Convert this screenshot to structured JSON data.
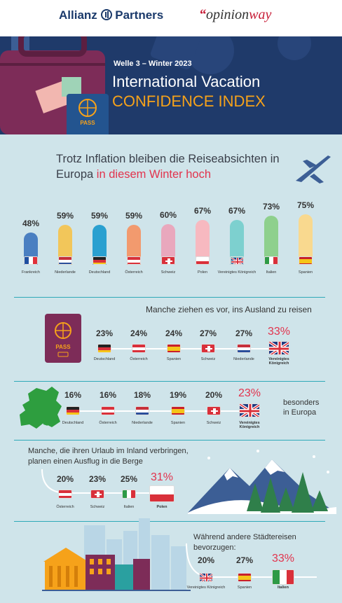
{
  "header": {
    "brand_allianz": "Allianz",
    "brand_partners": "Partners",
    "brand_opinion_1": "opinion",
    "brand_opinion_2": "way"
  },
  "hero": {
    "wave": "Welle 3 – Winter 2023",
    "title_1": "International Vacation",
    "title_2": "CONFIDENCE INDEX",
    "pass_label": "PASS"
  },
  "headline": {
    "part1": "Trotz Inflation bleiben die Reiseabsichten in Europa ",
    "part2": "in diesem Winter hoch"
  },
  "overview": {
    "items": [
      {
        "country": "Frankreich",
        "value": "48%",
        "pct": 48,
        "color": "#4a7fc1"
      },
      {
        "country": "Niederlande",
        "value": "59%",
        "pct": 59,
        "color": "#f2c65a"
      },
      {
        "country": "Deutschland",
        "value": "59%",
        "pct": 59,
        "color": "#2aa0d0"
      },
      {
        "country": "Österreich",
        "value": "59%",
        "pct": 59,
        "color": "#f29a6e"
      },
      {
        "country": "Schweiz",
        "value": "60%",
        "pct": 60,
        "color": "#e9a8bd"
      },
      {
        "country": "Polen",
        "value": "67%",
        "pct": 67,
        "color": "#f7b9c0"
      },
      {
        "country": "Vereinigtes Königreich",
        "value": "67%",
        "pct": 67,
        "color": "#7dd0cf"
      },
      {
        "country": "Italien",
        "value": "73%",
        "pct": 73,
        "color": "#8ed08d"
      },
      {
        "country": "Spanien",
        "value": "75%",
        "pct": 75,
        "color": "#f9d98f"
      }
    ]
  },
  "abroad": {
    "title": "Manche ziehen es vor, ins Ausland zu reisen",
    "pass_label": "PASS",
    "items": [
      {
        "country": "Deutschland",
        "value": "23%"
      },
      {
        "country": "Österreich",
        "value": "24%"
      },
      {
        "country": "Spanien",
        "value": "24%"
      },
      {
        "country": "Schweiz",
        "value": "27%"
      },
      {
        "country": "Niederlande",
        "value": "27%"
      },
      {
        "country": "Vereinigtes Königreich",
        "value": "33%"
      }
    ]
  },
  "europe": {
    "note_1": "besonders",
    "note_2": "in Europa",
    "items": [
      {
        "country": "Deutschland",
        "value": "16%"
      },
      {
        "country": "Österreich",
        "value": "16%"
      },
      {
        "country": "Niederlande",
        "value": "18%"
      },
      {
        "country": "Spanien",
        "value": "19%"
      },
      {
        "country": "Schweiz",
        "value": "20%"
      },
      {
        "country": "Vereinigtes Königreich",
        "value": "23%"
      }
    ]
  },
  "mountains": {
    "title_1": "Manche, die ihren Urlaub im Inland verbringen,",
    "title_2": "planen einen Ausflug in die Berge",
    "items": [
      {
        "country": "Österreich",
        "value": "20%"
      },
      {
        "country": "Schweiz",
        "value": "23%"
      },
      {
        "country": "Italien",
        "value": "25%"
      },
      {
        "country": "Polen",
        "value": "31%"
      }
    ]
  },
  "cities": {
    "title_1": "Während andere Städtereisen",
    "title_2": "bevorzugen:",
    "items": [
      {
        "country": "Vereinigtes Königreich",
        "value": "20%"
      },
      {
        "country": "Spanien",
        "value": "27%"
      },
      {
        "country": "Italien",
        "value": "33%"
      }
    ]
  }
}
